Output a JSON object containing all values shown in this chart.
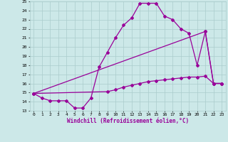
{
  "xlabel": "Windchill (Refroidissement éolien,°C)",
  "line1_x": [
    0,
    1,
    2,
    3,
    4,
    5,
    6,
    7,
    8,
    9,
    10,
    11,
    12,
    13,
    14,
    15,
    16,
    17,
    18,
    19,
    20,
    21,
    22,
    23
  ],
  "line1_y": [
    14.9,
    14.4,
    14.1,
    14.1,
    14.1,
    13.3,
    13.3,
    14.4,
    17.8,
    19.4,
    21.0,
    22.4,
    23.2,
    24.8,
    24.8,
    24.8,
    23.4,
    23.0,
    22.0,
    21.5,
    18.0,
    21.7,
    16.0,
    16.0
  ],
  "line2_x": [
    0,
    21,
    22,
    23
  ],
  "line2_y": [
    14.9,
    21.7,
    16.0,
    16.0
  ],
  "line3_x": [
    0,
    9,
    10,
    11,
    12,
    13,
    14,
    15,
    16,
    17,
    18,
    19,
    20,
    21,
    22,
    23
  ],
  "line3_y": [
    14.9,
    15.1,
    15.3,
    15.6,
    15.8,
    16.0,
    16.2,
    16.3,
    16.4,
    16.5,
    16.6,
    16.7,
    16.7,
    16.8,
    16.0,
    16.0
  ],
  "line_color": "#990099",
  "bg_color": "#cce8e8",
  "grid_color": "#aacccc",
  "xlim": [
    -0.5,
    23.5
  ],
  "ylim": [
    13,
    25
  ],
  "xticks": [
    0,
    1,
    2,
    3,
    4,
    5,
    6,
    7,
    8,
    9,
    10,
    11,
    12,
    13,
    14,
    15,
    16,
    17,
    18,
    19,
    20,
    21,
    22,
    23
  ],
  "yticks": [
    13,
    14,
    15,
    16,
    17,
    18,
    19,
    20,
    21,
    22,
    23,
    24,
    25
  ],
  "marker": "D",
  "markersize": 2.0,
  "linewidth": 0.9
}
